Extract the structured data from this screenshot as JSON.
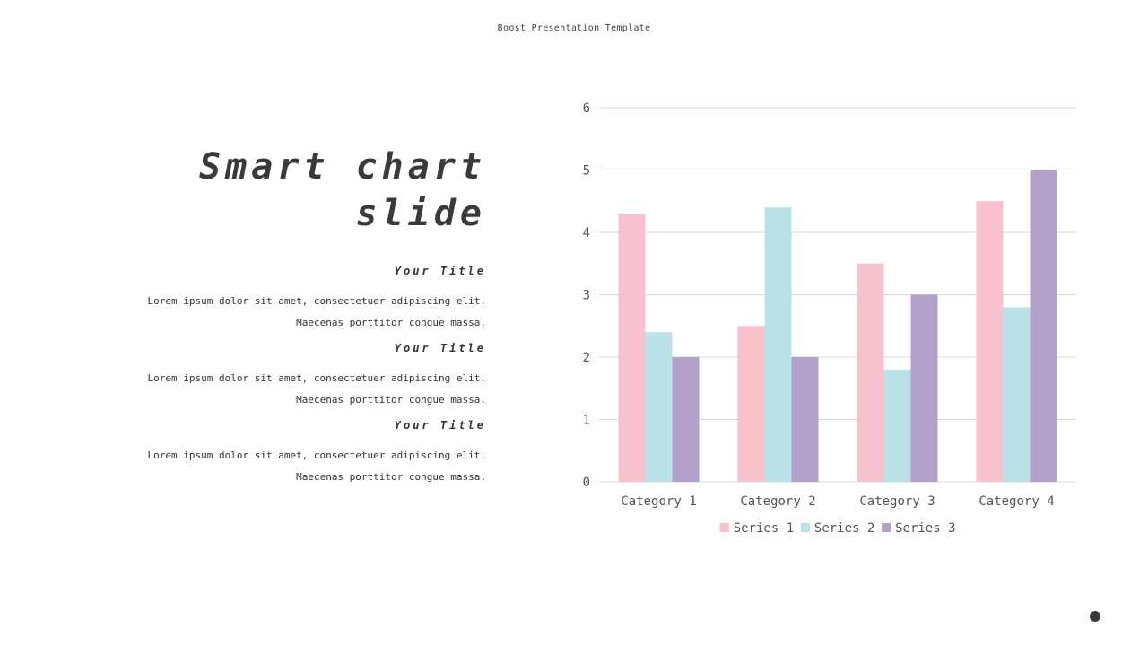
{
  "header": {
    "title": "Boost Presentation Template"
  },
  "left": {
    "title_line1": "Smart chart",
    "title_line2": "slide",
    "sections": [
      {
        "heading": "Your Title",
        "line1": "Lorem ipsum dolor sit amet, consectetuer adipiscing elit.",
        "line2": "Maecenas porttitor congue massa."
      },
      {
        "heading": "Your Title",
        "line1": "Lorem ipsum dolor sit amet, consectetuer adipiscing elit.",
        "line2": "Maecenas porttitor congue massa."
      },
      {
        "heading": "Your Title",
        "line1": "Lorem ipsum dolor sit amet, consectetuer adipiscing elit.",
        "line2": "Maecenas porttitor congue massa."
      }
    ]
  },
  "chart_data": {
    "type": "bar",
    "title": "",
    "xlabel": "",
    "ylabel": "",
    "categories": [
      "Category 1",
      "Category 2",
      "Category 3",
      "Category 4"
    ],
    "series": [
      {
        "name": "Series 1",
        "values": [
          4.3,
          2.5,
          3.5,
          4.5
        ],
        "color": "#f7c1cd"
      },
      {
        "name": "Series 2",
        "values": [
          2.4,
          4.4,
          1.8,
          2.8
        ],
        "color": "#b9e1e6"
      },
      {
        "name": "Series 3",
        "values": [
          2,
          2,
          3,
          5
        ],
        "color": "#b4a1cb"
      }
    ],
    "ylim": [
      0,
      6
    ],
    "yticks": [
      0,
      1,
      2,
      3,
      4,
      5,
      6
    ],
    "grid": true,
    "legend": "bottom"
  }
}
